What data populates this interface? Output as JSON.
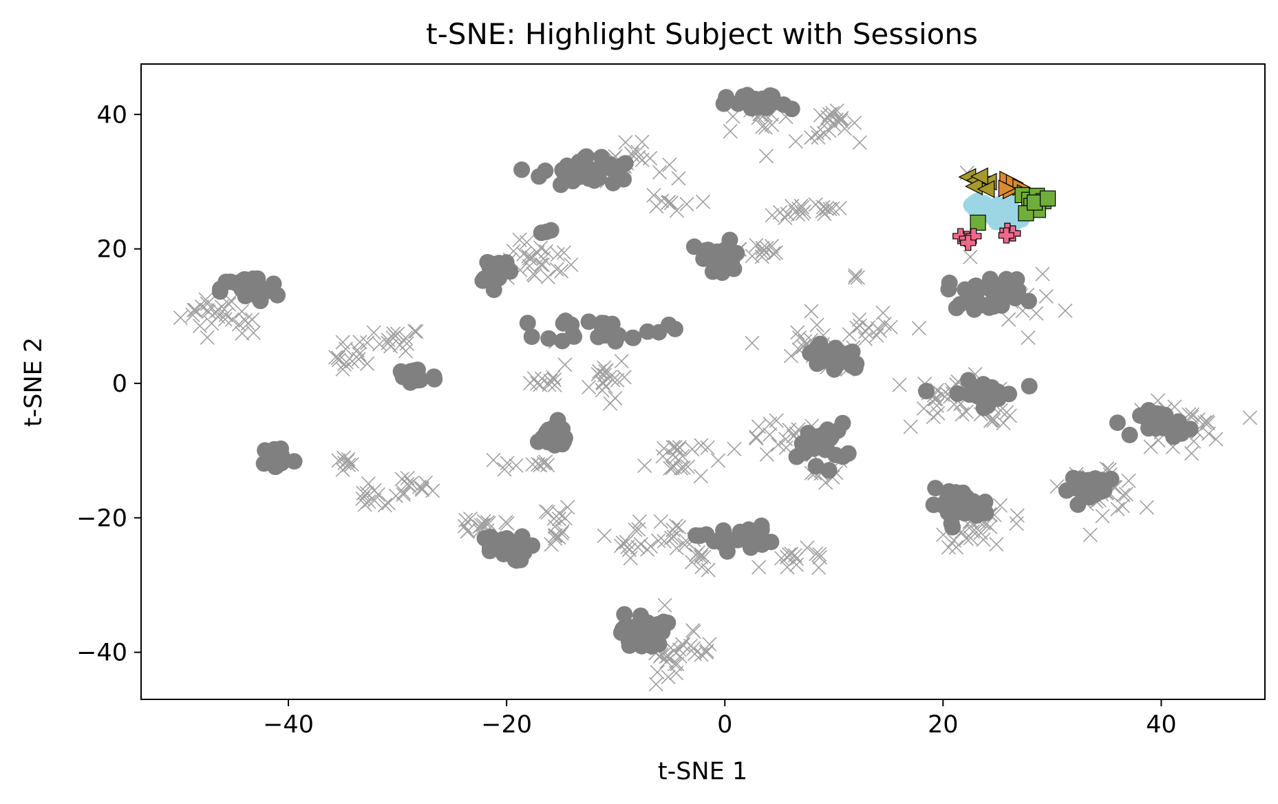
{
  "chart_data": {
    "type": "scatter",
    "title": "t-SNE: Highlight Subject with Sessions",
    "xlabel": "t-SNE 1",
    "ylabel": "t-SNE 2",
    "xlim": [
      -53.5,
      49.5
    ],
    "ylim": [
      -47,
      47.5
    ],
    "xticks": [
      -40,
      -20,
      0,
      20,
      40
    ],
    "yticks": [
      -40,
      -20,
      0,
      20,
      40
    ],
    "xtick_labels": [
      "−40",
      "−20",
      "0",
      "20",
      "40"
    ],
    "ytick_labels": [
      "−40",
      "−20",
      "0",
      "20",
      "40"
    ],
    "grid": false,
    "legend": "none",
    "background_colors": {
      "dot": "#808080",
      "cross": "#a0a0a0"
    },
    "background_dot_clusters": [
      {
        "cx": -43.5,
        "cy": 14,
        "rx": 2.2,
        "ry": 1.6,
        "n": 30
      },
      {
        "cx": -28.5,
        "cy": 1,
        "rx": 1.8,
        "ry": 1.5,
        "n": 20
      },
      {
        "cx": -41,
        "cy": -11,
        "rx": 1.2,
        "ry": 1.6,
        "n": 18
      },
      {
        "cx": -21,
        "cy": 17,
        "rx": 1.4,
        "ry": 1.8,
        "n": 20
      },
      {
        "cx": -12.5,
        "cy": 31.5,
        "rx": 3.5,
        "ry": 2.0,
        "n": 40
      },
      {
        "cx": -16,
        "cy": 23,
        "rx": 0.8,
        "ry": 0.6,
        "n": 3
      },
      {
        "cx": -11,
        "cy": 8,
        "rx": 4.5,
        "ry": 1.5,
        "n": 28
      },
      {
        "cx": -16,
        "cy": -8,
        "rx": 1.8,
        "ry": 1.8,
        "n": 22
      },
      {
        "cx": -20.5,
        "cy": -24.5,
        "rx": 2.0,
        "ry": 1.6,
        "n": 30
      },
      {
        "cx": -7.5,
        "cy": -37,
        "rx": 1.7,
        "ry": 2.3,
        "n": 30
      },
      {
        "cx": 1,
        "cy": -23,
        "rx": 2.8,
        "ry": 1.5,
        "n": 25
      },
      {
        "cx": -0.5,
        "cy": 18.5,
        "rx": 1.9,
        "ry": 2.2,
        "n": 25
      },
      {
        "cx": 3,
        "cy": 41.5,
        "rx": 2.3,
        "ry": 1.2,
        "n": 25
      },
      {
        "cx": 10,
        "cy": 4,
        "rx": 2.5,
        "ry": 2.0,
        "n": 25
      },
      {
        "cx": 9,
        "cy": -9,
        "rx": 1.8,
        "ry": 2.5,
        "n": 25
      },
      {
        "cx": 24,
        "cy": 13.5,
        "rx": 3.0,
        "ry": 2.0,
        "n": 30
      },
      {
        "cx": 23.5,
        "cy": -1.5,
        "rx": 2.8,
        "ry": 1.5,
        "n": 30
      },
      {
        "cx": 21.5,
        "cy": -18,
        "rx": 2.3,
        "ry": 1.8,
        "n": 28
      },
      {
        "cx": 34,
        "cy": -15.5,
        "rx": 2.0,
        "ry": 1.5,
        "n": 28
      },
      {
        "cx": 40.5,
        "cy": -6,
        "rx": 2.0,
        "ry": 1.6,
        "n": 28
      }
    ],
    "background_cross_clusters": [
      {
        "cx": -47,
        "cy": 10.5,
        "rx": 2.0,
        "ry": 2.0,
        "n": 20
      },
      {
        "cx": -44,
        "cy": 9,
        "rx": 1.0,
        "ry": 1.2,
        "n": 8
      },
      {
        "cx": -34,
        "cy": 4,
        "rx": 1.2,
        "ry": 2.0,
        "n": 15
      },
      {
        "cx": -30,
        "cy": 6.5,
        "rx": 1.5,
        "ry": 1.2,
        "n": 15
      },
      {
        "cx": -35,
        "cy": -12,
        "rx": 0.8,
        "ry": 0.8,
        "n": 8
      },
      {
        "cx": -32,
        "cy": -17,
        "rx": 1.5,
        "ry": 1.2,
        "n": 12
      },
      {
        "cx": -29,
        "cy": -15.5,
        "rx": 1.5,
        "ry": 1.2,
        "n": 12
      },
      {
        "cx": -17,
        "cy": 18,
        "rx": 2.2,
        "ry": 2.2,
        "n": 25
      },
      {
        "cx": -18,
        "cy": -12,
        "rx": 2.0,
        "ry": 0.8,
        "n": 10
      },
      {
        "cx": -16,
        "cy": -21,
        "rx": 1.5,
        "ry": 2.5,
        "n": 15
      },
      {
        "cx": -22,
        "cy": -21,
        "rx": 2.5,
        "ry": 1.2,
        "n": 15
      },
      {
        "cx": -16,
        "cy": 0.5,
        "rx": 1.2,
        "ry": 0.8,
        "n": 10
      },
      {
        "cx": -11,
        "cy": 1,
        "rx": 1.5,
        "ry": 2.2,
        "n": 18
      },
      {
        "cx": -9,
        "cy": 33,
        "rx": 2.5,
        "ry": 1.8,
        "n": 20
      },
      {
        "cx": -5,
        "cy": 27,
        "rx": 1.2,
        "ry": 1.2,
        "n": 8
      },
      {
        "cx": -4.5,
        "cy": -11,
        "rx": 2.0,
        "ry": 2.5,
        "n": 22
      },
      {
        "cx": -8,
        "cy": -23,
        "rx": 1.5,
        "ry": 2.0,
        "n": 15
      },
      {
        "cx": -4,
        "cy": -23,
        "rx": 1.5,
        "ry": 1.5,
        "n": 12
      },
      {
        "cx": -4.5,
        "cy": -40,
        "rx": 2.5,
        "ry": 2.0,
        "n": 30
      },
      {
        "cx": -2,
        "cy": -26.5,
        "rx": 1.0,
        "ry": 1.0,
        "n": 8
      },
      {
        "cx": 3,
        "cy": 40,
        "rx": 2.0,
        "ry": 1.5,
        "n": 15
      },
      {
        "cx": 10,
        "cy": 38.5,
        "rx": 1.5,
        "ry": 1.5,
        "n": 20
      },
      {
        "cx": 6,
        "cy": 25.5,
        "rx": 1.5,
        "ry": 1.2,
        "n": 12
      },
      {
        "cx": 9.5,
        "cy": 26,
        "rx": 1.2,
        "ry": 1.0,
        "n": 8
      },
      {
        "cx": 3.5,
        "cy": 20,
        "rx": 1.5,
        "ry": 1.5,
        "n": 12
      },
      {
        "cx": 9,
        "cy": 5,
        "rx": 3.5,
        "ry": 2.5,
        "n": 25
      },
      {
        "cx": 13,
        "cy": 7.5,
        "rx": 2.0,
        "ry": 1.5,
        "n": 10
      },
      {
        "cx": 5.5,
        "cy": -8.5,
        "rx": 2.5,
        "ry": 2.0,
        "n": 20
      },
      {
        "cx": 9,
        "cy": -13,
        "rx": 1.5,
        "ry": 1.5,
        "n": 10
      },
      {
        "cx": 7,
        "cy": -26.5,
        "rx": 2.5,
        "ry": 1.2,
        "n": 14
      },
      {
        "cx": 21,
        "cy": -2,
        "rx": 2.5,
        "ry": 2.5,
        "n": 28
      },
      {
        "cx": 24.5,
        "cy": -4,
        "rx": 1.5,
        "ry": 1.5,
        "n": 12
      },
      {
        "cx": 24,
        "cy": -21.5,
        "rx": 3.0,
        "ry": 2.0,
        "n": 25
      },
      {
        "cx": 34.5,
        "cy": -15.5,
        "rx": 2.5,
        "ry": 2.5,
        "n": 25
      },
      {
        "cx": 41.5,
        "cy": -6.5,
        "rx": 3.0,
        "ry": 2.5,
        "n": 28
      },
      {
        "cx": 27,
        "cy": 12,
        "rx": 1.5,
        "ry": 3.0,
        "n": 10
      },
      {
        "cx": 12,
        "cy": 16,
        "rx": 0.5,
        "ry": 0.5,
        "n": 3
      }
    ],
    "background_cross_points": [
      {
        "x": 17.8,
        "y": 8.2
      },
      {
        "x": 31.2,
        "y": 10.8
      },
      {
        "x": 14.5,
        "y": 10.5
      },
      {
        "x": 22.2,
        "y": 31.3
      },
      {
        "x": 27.8,
        "y": 6.8
      },
      {
        "x": 3.8,
        "y": 33.8
      },
      {
        "x": 6.5,
        "y": 36
      },
      {
        "x": -2,
        "y": 27
      },
      {
        "x": 0.5,
        "y": 37.5
      },
      {
        "x": -5.5,
        "y": -33
      },
      {
        "x": -10.5,
        "y": -3
      },
      {
        "x": 2.5,
        "y": 6
      },
      {
        "x": 22.5,
        "y": 18.8
      },
      {
        "x": -15.5,
        "y": 6.2
      }
    ],
    "series": [
      {
        "marker": "circle",
        "color": "#9cd6e4",
        "points": [
          {
            "x": 22.6,
            "y": 26.5
          },
          {
            "x": 23.2,
            "y": 27.2
          },
          {
            "x": 23.8,
            "y": 26.8
          },
          {
            "x": 24.4,
            "y": 26.2
          },
          {
            "x": 25.0,
            "y": 26.6
          },
          {
            "x": 25.6,
            "y": 25.9
          },
          {
            "x": 26.2,
            "y": 26.3
          },
          {
            "x": 26.8,
            "y": 25.4
          },
          {
            "x": 27.2,
            "y": 24.4
          },
          {
            "x": 26.4,
            "y": 24.7
          },
          {
            "x": 25.6,
            "y": 24.5
          },
          {
            "x": 24.6,
            "y": 24.6
          },
          {
            "x": 23.6,
            "y": 25.2
          },
          {
            "x": 24.2,
            "y": 25.6
          },
          {
            "x": 25.1,
            "y": 25.3
          },
          {
            "x": 26.0,
            "y": 27.0
          },
          {
            "x": 23.0,
            "y": 25.8
          },
          {
            "x": 22.9,
            "y": 26.9
          },
          {
            "x": 27.4,
            "y": 25.0
          },
          {
            "x": 24.9,
            "y": 24.0
          },
          {
            "x": 26.6,
            "y": 23.9
          }
        ]
      },
      {
        "marker": "triangle-left",
        "color": "#a59a2a",
        "points": [
          {
            "x": 22.3,
            "y": 30.7
          },
          {
            "x": 23.0,
            "y": 30.2
          },
          {
            "x": 23.6,
            "y": 29.6
          },
          {
            "x": 24.2,
            "y": 30.0
          },
          {
            "x": 22.9,
            "y": 29.3
          },
          {
            "x": 24.0,
            "y": 28.9
          },
          {
            "x": 23.4,
            "y": 30.8
          }
        ]
      },
      {
        "marker": "triangle-right",
        "color": "#d98a2e",
        "points": [
          {
            "x": 25.9,
            "y": 30.3
          },
          {
            "x": 26.5,
            "y": 29.8
          },
          {
            "x": 27.1,
            "y": 29.2
          },
          {
            "x": 26.2,
            "y": 28.7
          },
          {
            "x": 27.5,
            "y": 28.3
          },
          {
            "x": 25.8,
            "y": 29.0
          }
        ]
      },
      {
        "marker": "square",
        "color": "#6fae3a",
        "points": [
          {
            "x": 27.3,
            "y": 28.0
          },
          {
            "x": 27.9,
            "y": 27.3
          },
          {
            "x": 28.6,
            "y": 27.9
          },
          {
            "x": 29.2,
            "y": 27.1
          },
          {
            "x": 28.1,
            "y": 26.4
          },
          {
            "x": 28.7,
            "y": 25.8
          },
          {
            "x": 27.6,
            "y": 25.3
          },
          {
            "x": 28.4,
            "y": 26.9
          },
          {
            "x": 23.2,
            "y": 23.9
          },
          {
            "x": 29.6,
            "y": 27.5
          }
        ]
      },
      {
        "marker": "plus",
        "color": "#ee6a8a",
        "points": [
          {
            "x": 21.6,
            "y": 21.9
          },
          {
            "x": 22.2,
            "y": 21.5
          },
          {
            "x": 22.8,
            "y": 21.9
          },
          {
            "x": 22.3,
            "y": 20.9
          },
          {
            "x": 25.9,
            "y": 22.7
          },
          {
            "x": 26.4,
            "y": 22.3
          },
          {
            "x": 25.8,
            "y": 22.0
          }
        ]
      }
    ]
  }
}
